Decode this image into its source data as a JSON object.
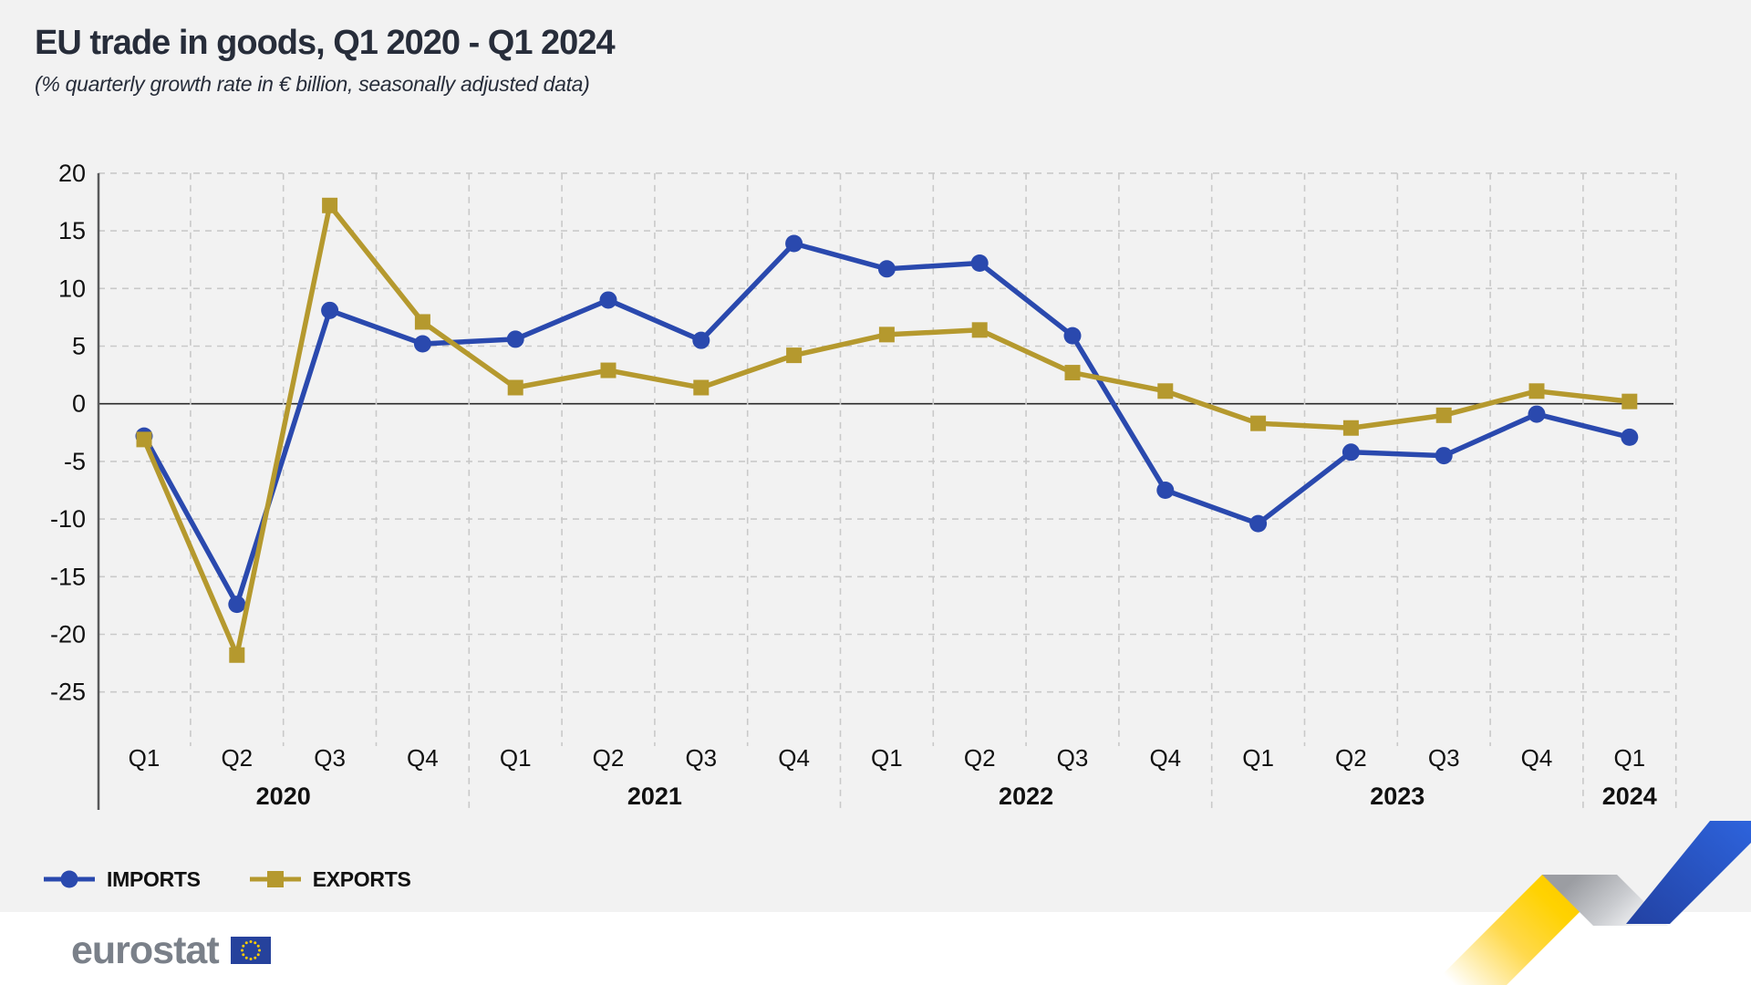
{
  "header": {
    "title": "EU trade in goods, Q1 2020 - Q1 2024",
    "subtitle": "(% quarterly growth rate in € billion, seasonally adjusted data)"
  },
  "chart_data": {
    "type": "line",
    "title": "EU trade in goods, Q1 2020 - Q1 2024",
    "subtitle": "(% quarterly growth rate in € billion, seasonally adjusted data)",
    "quarter_labels": [
      "Q1",
      "Q2",
      "Q3",
      "Q4",
      "Q1",
      "Q2",
      "Q3",
      "Q4",
      "Q1",
      "Q2",
      "Q3",
      "Q4",
      "Q1",
      "Q2",
      "Q3",
      "Q4",
      "Q1"
    ],
    "year_groups": [
      {
        "label": "2020",
        "quarters": 4
      },
      {
        "label": "2021",
        "quarters": 4
      },
      {
        "label": "2022",
        "quarters": 4
      },
      {
        "label": "2023",
        "quarters": 4
      },
      {
        "label": "2024",
        "quarters": 1
      }
    ],
    "y_ticks": [
      20,
      15,
      10,
      5,
      0,
      -5,
      -10,
      -15,
      -20,
      -25
    ],
    "ylim": [
      -25,
      20
    ],
    "grid": "dashed",
    "legend_position": "bottom-left",
    "series": [
      {
        "name": "IMPORTS",
        "marker": "circle",
        "color": "#2a49ae",
        "values": [
          -2.8,
          -17.4,
          8.1,
          5.2,
          5.6,
          9.0,
          5.5,
          13.9,
          11.7,
          12.2,
          5.9,
          -7.5,
          -10.4,
          -4.2,
          -4.5,
          -0.9,
          -2.9
        ]
      },
      {
        "name": "EXPORTS",
        "marker": "square",
        "color": "#b5992e",
        "values": [
          -3.1,
          -21.8,
          17.2,
          7.1,
          1.4,
          2.9,
          1.4,
          4.2,
          6.0,
          6.4,
          2.7,
          1.1,
          -1.7,
          -2.1,
          -1.0,
          1.1,
          0.2
        ]
      }
    ]
  },
  "footer": {
    "logo_text": "eurostat"
  },
  "colors": {
    "background": "#f2f2f2",
    "bottom_strip": "#ffffff",
    "gridline": "#c9c9c9",
    "zero_line": "#2b2b2b",
    "axis_line": "#58595b",
    "tick_text": "#111111",
    "title_text": "#272d3a",
    "logo_gray": "#7a8089",
    "flag_blue": "#26429c",
    "flag_star_yellow": "#ffcc00",
    "ribbon_yellow": "#ffd200",
    "ribbon_gray": "#a7a9ad",
    "ribbon_blue": "#2d5fd3"
  }
}
